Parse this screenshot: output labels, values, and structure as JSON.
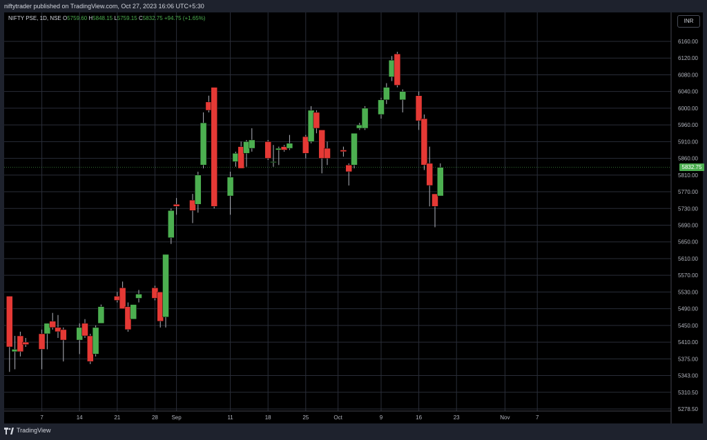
{
  "header": {
    "published": "niftytrader published on TradingView.com, Oct 27, 2023 16:06 UTC+5:30"
  },
  "legend": {
    "symbol": "NIFTY PSE, 1D, NSE",
    "o_label": "O",
    "o_value": "5759.60",
    "h_label": "H",
    "h_value": "5848.15",
    "l_label": "L",
    "l_value": "5759.15",
    "c_label": "C",
    "c_value": "5832.75",
    "change": "+94.75 (+1.65%)"
  },
  "currency_button": "INR",
  "last_price_label": "5832.75",
  "footer": {
    "brand": "TradingView"
  },
  "colors": {
    "up": "#4caf50",
    "down": "#e53935",
    "wick": "#b2b5be",
    "grid": "#2a2e39",
    "background": "#000000"
  },
  "chart_data": {
    "type": "candlestick",
    "title": "NIFTY PSE, 1D, NSE",
    "y_ticks": [
      5278.5,
      5310.5,
      5343.0,
      5375.0,
      5410.0,
      5450.0,
      5490.0,
      5530.0,
      5570.0,
      5610.0,
      5650.0,
      5690.0,
      5730.0,
      5770.0,
      5810.0,
      5860.0,
      5910.0,
      5960.0,
      6000.0,
      6040.0,
      6080.0,
      6120.0,
      6160.0
    ],
    "x_ticks": [
      {
        "label": "7",
        "day": 7
      },
      {
        "label": "14",
        "day": 14
      },
      {
        "label": "21",
        "day": 21
      },
      {
        "label": "28",
        "day": 28
      },
      {
        "label": "Sep",
        "day": 32
      },
      {
        "label": "11",
        "day": 42
      },
      {
        "label": "18",
        "day": 49
      },
      {
        "label": "25",
        "day": 56
      },
      {
        "label": "Oct",
        "day": 62
      },
      {
        "label": "9",
        "day": 70
      },
      {
        "label": "16",
        "day": 77
      },
      {
        "label": "23",
        "day": 84
      },
      {
        "label": "Nov",
        "day": 93
      },
      {
        "label": "7",
        "day": 99
      }
    ],
    "candles": [
      {
        "day": 1,
        "o": 5520,
        "h": 5520,
        "l": 5350,
        "c": 5400
      },
      {
        "day": 2,
        "o": 5390,
        "h": 5425,
        "l": 5355,
        "c": 5395
      },
      {
        "day": 3,
        "o": 5425,
        "h": 5435,
        "l": 5380,
        "c": 5390
      },
      {
        "day": 4,
        "o": 5410,
        "h": 5420,
        "l": 5400,
        "c": 5405
      },
      {
        "day": 7,
        "o": 5430,
        "h": 5440,
        "l": 5355,
        "c": 5395
      },
      {
        "day": 8,
        "o": 5430,
        "h": 5455,
        "l": 5395,
        "c": 5455
      },
      {
        "day": 9,
        "o": 5460,
        "h": 5480,
        "l": 5440,
        "c": 5445
      },
      {
        "day": 10,
        "o": 5445,
        "h": 5475,
        "l": 5420,
        "c": 5435
      },
      {
        "day": 11,
        "o": 5440,
        "h": 5445,
        "l": 5370,
        "c": 5415
      },
      {
        "day": 14,
        "o": 5415,
        "h": 5455,
        "l": 5385,
        "c": 5445
      },
      {
        "day": 15,
        "o": 5455,
        "h": 5465,
        "l": 5420,
        "c": 5425
      },
      {
        "day": 16,
        "o": 5425,
        "h": 5430,
        "l": 5365,
        "c": 5370
      },
      {
        "day": 17,
        "o": 5385,
        "h": 5450,
        "l": 5380,
        "c": 5445
      },
      {
        "day": 18,
        "o": 5455,
        "h": 5500,
        "l": 5455,
        "c": 5495
      },
      {
        "day": 21,
        "o": 5520,
        "h": 5530,
        "l": 5505,
        "c": 5510
      },
      {
        "day": 22,
        "o": 5540,
        "h": 5555,
        "l": 5490,
        "c": 5490
      },
      {
        "day": 23,
        "o": 5495,
        "h": 5505,
        "l": 5435,
        "c": 5440
      },
      {
        "day": 24,
        "o": 5465,
        "h": 5500,
        "l": 5465,
        "c": 5500
      },
      {
        "day": 25,
        "o": 5515,
        "h": 5535,
        "l": 5505,
        "c": 5525
      },
      {
        "day": 28,
        "o": 5540,
        "h": 5545,
        "l": 5510,
        "c": 5515
      },
      {
        "day": 29,
        "o": 5530,
        "h": 5530,
        "l": 5445,
        "c": 5460
      },
      {
        "day": 30,
        "o": 5470,
        "h": 5620,
        "l": 5445,
        "c": 5620
      },
      {
        "day": 31,
        "o": 5660,
        "h": 5730,
        "l": 5645,
        "c": 5725
      },
      {
        "day": 32,
        "o": 5740,
        "h": 5755,
        "l": 5715,
        "c": 5735
      },
      {
        "day": 35,
        "o": 5750,
        "h": 5765,
        "l": 5695,
        "c": 5725
      },
      {
        "day": 36,
        "o": 5740,
        "h": 5820,
        "l": 5720,
        "c": 5810
      },
      {
        "day": 37,
        "o": 5840,
        "h": 5990,
        "l": 5830,
        "c": 5965
      },
      {
        "day": 38,
        "o": 6015,
        "h": 6030,
        "l": 5990,
        "c": 5995
      },
      {
        "day": 39,
        "o": 6050,
        "h": 6050,
        "l": 5730,
        "c": 5735
      },
      {
        "day": 42,
        "o": 5760,
        "h": 5820,
        "l": 5715,
        "c": 5805
      },
      {
        "day": 43,
        "o": 5850,
        "h": 5880,
        "l": 5835,
        "c": 5875
      },
      {
        "day": 44,
        "o": 5895,
        "h": 5910,
        "l": 5830,
        "c": 5830
      },
      {
        "day": 45,
        "o": 5875,
        "h": 5915,
        "l": 5835,
        "c": 5910
      },
      {
        "day": 46,
        "o": 5890,
        "h": 5950,
        "l": 5880,
        "c": 5915
      },
      {
        "day": 49,
        "o": 5910,
        "h": 5915,
        "l": 5855,
        "c": 5860
      },
      {
        "day": 50,
        "o": 5850,
        "h": 5900,
        "l": 5835,
        "c": 5850
      },
      {
        "day": 51,
        "o": 5885,
        "h": 5895,
        "l": 5840,
        "c": 5890
      },
      {
        "day": 52,
        "o": 5895,
        "h": 5900,
        "l": 5880,
        "c": 5885
      },
      {
        "day": 53,
        "o": 5890,
        "h": 5930,
        "l": 5885,
        "c": 5905
      },
      {
        "day": 56,
        "o": 5925,
        "h": 5930,
        "l": 5860,
        "c": 5875
      },
      {
        "day": 57,
        "o": 5910,
        "h": 6005,
        "l": 5905,
        "c": 5995
      },
      {
        "day": 58,
        "o": 5990,
        "h": 5995,
        "l": 5935,
        "c": 5950
      },
      {
        "day": 59,
        "o": 5945,
        "h": 5945,
        "l": 5815,
        "c": 5860
      },
      {
        "day": 60,
        "o": 5890,
        "h": 5910,
        "l": 5840,
        "c": 5860
      },
      {
        "day": 63,
        "o": 5885,
        "h": 5895,
        "l": 5865,
        "c": 5880
      },
      {
        "day": 64,
        "o": 5840,
        "h": 5845,
        "l": 5785,
        "c": 5820
      },
      {
        "day": 65,
        "o": 5840,
        "h": 5935,
        "l": 5830,
        "c": 5935
      },
      {
        "day": 66,
        "o": 5950,
        "h": 5965,
        "l": 5945,
        "c": 5960
      },
      {
        "day": 67,
        "o": 5950,
        "h": 6005,
        "l": 5945,
        "c": 6000
      },
      {
        "day": 70,
        "o": 5985,
        "h": 6025,
        "l": 5975,
        "c": 6020
      },
      {
        "day": 71,
        "o": 6020,
        "h": 6060,
        "l": 6010,
        "c": 6050
      },
      {
        "day": 72,
        "o": 6075,
        "h": 6125,
        "l": 6065,
        "c": 6115
      },
      {
        "day": 73,
        "o": 6130,
        "h": 6135,
        "l": 6050,
        "c": 6055
      },
      {
        "day": 74,
        "o": 6020,
        "h": 6045,
        "l": 5990,
        "c": 6040
      },
      {
        "day": 77,
        "o": 6030,
        "h": 6040,
        "l": 5945,
        "c": 5970
      },
      {
        "day": 78,
        "o": 5975,
        "h": 5985,
        "l": 5825,
        "c": 5840
      },
      {
        "day": 79,
        "o": 5845,
        "h": 5895,
        "l": 5735,
        "c": 5785
      },
      {
        "day": 80,
        "o": 5765,
        "h": 5765,
        "l": 5685,
        "c": 5735
      },
      {
        "day": 81,
        "o": 5760,
        "h": 5845,
        "l": 5760,
        "c": 5833
      }
    ]
  }
}
